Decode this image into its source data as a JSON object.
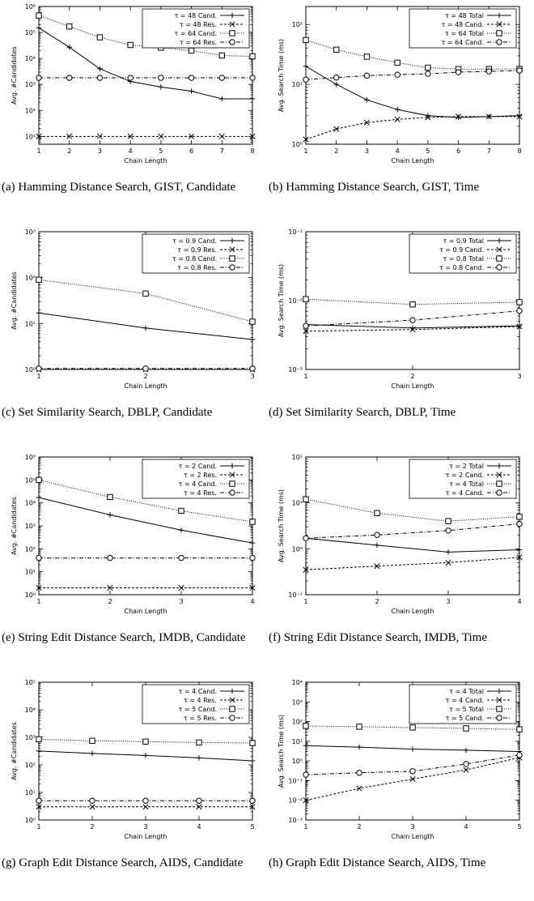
{
  "chart_data": [
    {
      "type": "line",
      "caption": "(a) Hamming Distance Search, GIST, Candidate",
      "xlabel": "Chain Length",
      "ylabel": "Avg. #Candidates",
      "x": [
        1,
        2,
        3,
        4,
        5,
        6,
        7,
        8
      ],
      "xlim": [
        1,
        8
      ],
      "ylim": [
        5,
        1000000
      ],
      "yscale": "log",
      "yticks": [
        10,
        100,
        1000,
        10000,
        100000,
        1000000
      ],
      "ytick_labels": [
        "10¹",
        "10²",
        "10³",
        "10⁴",
        "10⁵",
        "10⁶"
      ],
      "legend_position": "top-right",
      "series": [
        {
          "name": "τ = 48 Cand.",
          "marker": "plus",
          "dash": "solid",
          "values": [
            150000,
            27000,
            4000,
            1300,
            800,
            550,
            280,
            280
          ]
        },
        {
          "name": "τ = 48 Res.",
          "marker": "x",
          "dash": "dashed",
          "values": [
            10,
            10,
            10,
            10,
            10,
            10,
            10,
            10
          ]
        },
        {
          "name": "τ = 64 Cand.",
          "marker": "square",
          "dash": "dotted",
          "values": [
            450000,
            170000,
            65000,
            33000,
            26000,
            20000,
            13000,
            12000
          ]
        },
        {
          "name": "τ = 64 Res.",
          "marker": "circle",
          "dash": "dashdot",
          "values": [
            1800,
            1800,
            1800,
            1800,
            1800,
            1800,
            1800,
            1800
          ]
        }
      ]
    },
    {
      "type": "line",
      "caption": "(b) Hamming Distance Search, GIST, Time",
      "xlabel": "Chain Length",
      "ylabel": "Avg. Search Time (ms)",
      "x": [
        1,
        2,
        3,
        4,
        5,
        6,
        7,
        8
      ],
      "xlim": [
        1,
        8
      ],
      "ylim": [
        1,
        200
      ],
      "yscale": "log",
      "yticks": [
        1,
        10,
        100
      ],
      "ytick_labels": [
        "10⁰",
        "10¹",
        "10²"
      ],
      "legend_position": "top-right",
      "series": [
        {
          "name": "τ = 48 Total",
          "marker": "plus",
          "dash": "solid",
          "values": [
            20,
            10,
            5.5,
            3.8,
            3,
            2.8,
            2.9,
            3
          ]
        },
        {
          "name": "τ = 48 Cand.",
          "marker": "x",
          "dash": "dashed",
          "values": [
            1.2,
            1.8,
            2.3,
            2.6,
            2.8,
            2.9,
            2.9,
            2.9
          ]
        },
        {
          "name": "τ = 64 Total",
          "marker": "square",
          "dash": "dotted",
          "values": [
            55,
            38,
            29,
            23,
            19,
            18,
            18,
            18
          ]
        },
        {
          "name": "τ = 64 Cand.",
          "marker": "circle",
          "dash": "dashdot",
          "values": [
            12,
            13,
            14,
            14.5,
            15,
            16,
            16.5,
            17
          ]
        }
      ]
    },
    {
      "type": "line",
      "caption": "(c) Set Similarity Search, DBLP, Candidate",
      "xlabel": "Chain Length",
      "ylabel": "Avg. #Candidates",
      "x": [
        1,
        2,
        3
      ],
      "xlim": [
        1,
        3
      ],
      "ylim": [
        1,
        1000
      ],
      "yscale": "log",
      "yticks": [
        1,
        10,
        100,
        1000
      ],
      "ytick_labels": [
        "10⁰",
        "10¹",
        "10²",
        "10³"
      ],
      "legend_position": "top-right",
      "series": [
        {
          "name": "τ = 0.9 Cand.",
          "marker": "plus",
          "dash": "solid",
          "values": [
            17,
            8,
            4.5
          ]
        },
        {
          "name": "τ = 0.9 Res.",
          "marker": "x",
          "dash": "dashed",
          "values": [
            1,
            1,
            1
          ]
        },
        {
          "name": "τ = 0.8 Cand.",
          "marker": "square",
          "dash": "dotted",
          "values": [
            90,
            45,
            11
          ]
        },
        {
          "name": "τ = 0.8 Res.",
          "marker": "circle",
          "dash": "dashdot",
          "values": [
            1.05,
            1.05,
            1.05
          ]
        }
      ]
    },
    {
      "type": "line",
      "caption": "(d) Set Similarity Search, DBLP, Time",
      "xlabel": "Chain Length",
      "ylabel": "Avg. Search Time (ms)",
      "x": [
        1,
        2,
        3
      ],
      "xlim": [
        1,
        3
      ],
      "ylim": [
        0.001,
        0.1
      ],
      "yscale": "log",
      "yticks": [
        0.001,
        0.01,
        0.1
      ],
      "ytick_labels": [
        "10⁻³",
        "10⁻²",
        "10⁻¹"
      ],
      "legend_position": "top-right",
      "series": [
        {
          "name": "τ = 0.9 Total",
          "marker": "plus",
          "dash": "solid",
          "values": [
            0.0045,
            0.004,
            0.0043
          ]
        },
        {
          "name": "τ = 0.9 Cand.",
          "marker": "x",
          "dash": "dashed",
          "values": [
            0.0036,
            0.0038,
            0.0042
          ]
        },
        {
          "name": "τ = 0.8 Total",
          "marker": "square",
          "dash": "dotted",
          "values": [
            0.0105,
            0.0088,
            0.0095
          ]
        },
        {
          "name": "τ = 0.8 Cand.",
          "marker": "circle",
          "dash": "dashdot",
          "values": [
            0.0043,
            0.0052,
            0.0071
          ]
        }
      ]
    },
    {
      "type": "line",
      "caption": "(e) String Edit Distance Search, IMDB, Candidate",
      "xlabel": "Chain Length",
      "ylabel": "Avg. #Candidates",
      "x": [
        1,
        2,
        3,
        4
      ],
      "xlim": [
        1,
        4
      ],
      "ylim": [
        1,
        1000000
      ],
      "yscale": "log",
      "yticks": [
        1,
        10,
        100,
        1000,
        10000,
        100000,
        1000000
      ],
      "ytick_labels": [
        "10⁰",
        "10¹",
        "10²",
        "10³",
        "10⁴",
        "10⁵",
        "10⁶"
      ],
      "legend_position": "top-right",
      "series": [
        {
          "name": "τ = 2 Cand.",
          "marker": "plus",
          "dash": "solid",
          "values": [
            17000,
            3000,
            650,
            180
          ]
        },
        {
          "name": "τ = 2 Res.",
          "marker": "x",
          "dash": "dashed",
          "values": [
            2,
            2,
            2,
            2
          ]
        },
        {
          "name": "τ = 4 Cand.",
          "marker": "square",
          "dash": "dotted",
          "values": [
            100000,
            18000,
            4500,
            1500
          ]
        },
        {
          "name": "τ = 4 Res.",
          "marker": "circle",
          "dash": "dashdot",
          "values": [
            40,
            40,
            40,
            40
          ]
        }
      ]
    },
    {
      "type": "line",
      "caption": "(f) String Edit Distance Search, IMDB, Time",
      "xlabel": "Chain Length",
      "ylabel": "Avg. Search Time (ms)",
      "x": [
        1,
        2,
        3,
        4
      ],
      "xlim": [
        1,
        4
      ],
      "ylim": [
        0.1,
        100
      ],
      "yscale": "log",
      "yticks": [
        0.1,
        1,
        10,
        100
      ],
      "ytick_labels": [
        "10⁻¹",
        "10⁰",
        "10¹",
        "10²"
      ],
      "legend_position": "top-right",
      "series": [
        {
          "name": "τ = 2 Total",
          "marker": "plus",
          "dash": "solid",
          "values": [
            1.7,
            1.2,
            0.85,
            0.95
          ]
        },
        {
          "name": "τ = 2 Cand.",
          "marker": "x",
          "dash": "dashed",
          "values": [
            0.35,
            0.42,
            0.5,
            0.65
          ]
        },
        {
          "name": "τ = 4 Total",
          "marker": "square",
          "dash": "dotted",
          "values": [
            12,
            6,
            4,
            5
          ]
        },
        {
          "name": "τ = 4 Cand.",
          "marker": "circle",
          "dash": "dashdot",
          "values": [
            1.7,
            2,
            2.5,
            3.5
          ]
        }
      ]
    },
    {
      "type": "line",
      "caption": "(g) Graph Edit Distance Search, AIDS, Candidate",
      "xlabel": "Chain Length",
      "ylabel": "Avg. #Candidates",
      "x": [
        1,
        2,
        3,
        4,
        5
      ],
      "xlim": [
        1,
        5
      ],
      "ylim": [
        1,
        100000
      ],
      "yscale": "log",
      "yticks": [
        1,
        10,
        100,
        1000,
        10000,
        100000
      ],
      "ytick_labels": [
        "10⁰",
        "10¹",
        "10²",
        "10³",
        "10⁴",
        "10⁵"
      ],
      "legend_position": "top-right",
      "series": [
        {
          "name": "τ = 4 Cand.",
          "marker": "plus",
          "dash": "solid",
          "values": [
            320,
            260,
            220,
            180,
            140
          ]
        },
        {
          "name": "τ = 4 Res.",
          "marker": "x",
          "dash": "dashed",
          "values": [
            3,
            3,
            3,
            3,
            3
          ]
        },
        {
          "name": "τ = 5 Cand.",
          "marker": "square",
          "dash": "dotted",
          "values": [
            850,
            750,
            700,
            650,
            620
          ]
        },
        {
          "name": "τ = 5 Res.",
          "marker": "circle",
          "dash": "dashdot",
          "values": [
            5,
            5,
            5,
            5,
            5
          ]
        }
      ]
    },
    {
      "type": "line",
      "caption": "(h) Graph Edit Distance Search, AIDS, Time",
      "xlabel": "Chain Length",
      "ylabel": "Avg. Search Time (ms)",
      "x": [
        1,
        2,
        3,
        4,
        5
      ],
      "xlim": [
        1,
        5
      ],
      "ylim": [
        0.001,
        10000
      ],
      "yscale": "log",
      "yticks": [
        0.001,
        0.01,
        0.1,
        1,
        10,
        100,
        1000,
        10000
      ],
      "ytick_labels": [
        "10⁻³",
        "10⁻²",
        "10⁻¹",
        "10⁰",
        "10¹",
        "10²",
        "10³",
        "10⁴"
      ],
      "legend_position": "top-right",
      "series": [
        {
          "name": "τ = 4 Total",
          "marker": "plus",
          "dash": "solid",
          "values": [
            6,
            5,
            4,
            3.5,
            3
          ]
        },
        {
          "name": "τ = 4 Cand.",
          "marker": "x",
          "dash": "dashed",
          "values": [
            0.01,
            0.04,
            0.12,
            0.35,
            1.5
          ]
        },
        {
          "name": "τ = 5 Total",
          "marker": "square",
          "dash": "dotted",
          "values": [
            60,
            55,
            50,
            45,
            40
          ]
        },
        {
          "name": "τ = 5 Cand.",
          "marker": "circle",
          "dash": "dashdot",
          "values": [
            0.2,
            0.25,
            0.3,
            0.7,
            2
          ]
        }
      ]
    }
  ]
}
